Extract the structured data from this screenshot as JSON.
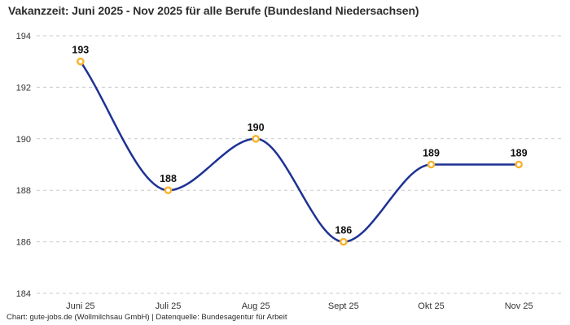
{
  "footer": {
    "credit": "Chart: gute-jobs.de (Wollmilchsau GmbH) | Datenquelle: Bundesagentur für Arbeit"
  },
  "chart_data": {
    "type": "line",
    "title": "Vakanzzeit: Juni 2025 - Nov 2025 für alle Berufe (Bundesland Niedersachsen)",
    "categories": [
      "Juni 25",
      "Juli 25",
      "Aug 25",
      "Sept 25",
      "Okt 25",
      "Nov 25"
    ],
    "values": [
      193,
      188,
      190,
      186,
      189,
      189
    ],
    "point_labels": [
      "193",
      "188",
      "190",
      "186",
      "189",
      "189"
    ],
    "xlabel": "",
    "ylabel": "",
    "ylim": [
      184,
      194
    ],
    "yticks": [
      184,
      186,
      188,
      190,
      192,
      194
    ],
    "grid": "horizontal-dashed",
    "legend": "none",
    "curve": "monotone",
    "colors": {
      "line": "#1d3293",
      "marker_stroke": "#f8b229",
      "marker_fill": "#ffffff",
      "grid": "#c9c9c9",
      "tick_text": "#333333",
      "label_text": "#111111",
      "title_text": "#2d2d2d",
      "background": "#ffffff"
    }
  }
}
